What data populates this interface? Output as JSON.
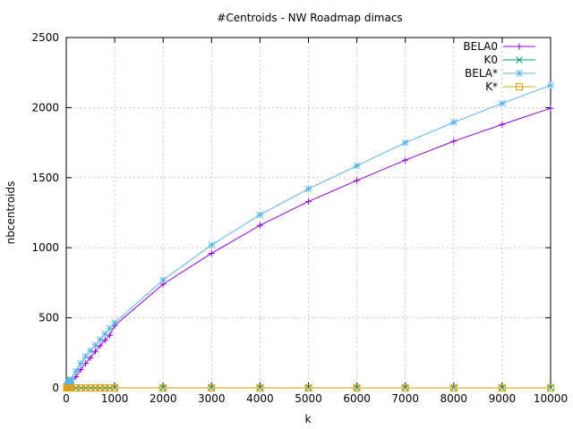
{
  "chart_data": {
    "type": "line",
    "title": "#Centroids - NW Roadmap dimacs",
    "xlabel": "k",
    "ylabel": "nbcentroids",
    "xlim": [
      0,
      10000
    ],
    "ylim": [
      0,
      2500
    ],
    "xticks": [
      0,
      1000,
      2000,
      3000,
      4000,
      5000,
      6000,
      7000,
      8000,
      9000,
      10000
    ],
    "yticks": [
      0,
      500,
      1000,
      1500,
      2000,
      2500
    ],
    "grid": true,
    "legend_position": "top-right",
    "series": [
      {
        "name": "BELA0",
        "color": "#9400d3",
        "marker": "plus",
        "x": [
          10,
          20,
          30,
          40,
          50,
          60,
          70,
          80,
          90,
          100,
          200,
          300,
          400,
          500,
          600,
          700,
          800,
          900,
          1000,
          2000,
          3000,
          4000,
          5000,
          6000,
          7000,
          8000,
          9000,
          10000
        ],
        "y": [
          6,
          10,
          13,
          17,
          20,
          23,
          26,
          28,
          31,
          34,
          80,
          130,
          175,
          215,
          260,
          300,
          340,
          375,
          445,
          740,
          960,
          1160,
          1330,
          1480,
          1625,
          1760,
          1880,
          1995
        ]
      },
      {
        "name": "K0",
        "color": "#009e73",
        "marker": "cross",
        "x": [
          10,
          20,
          30,
          40,
          50,
          60,
          70,
          80,
          90,
          100,
          200,
          300,
          400,
          500,
          600,
          700,
          800,
          900,
          1000,
          2000,
          3000,
          4000,
          5000,
          6000,
          7000,
          8000,
          9000,
          10000
        ],
        "y": [
          0,
          0,
          0,
          0,
          0,
          0,
          0,
          0,
          0,
          0,
          0,
          0,
          0,
          0,
          0,
          0,
          0,
          0,
          0,
          0,
          0,
          0,
          0,
          0,
          0,
          0,
          0,
          0
        ]
      },
      {
        "name": "BELA*",
        "color": "#56b4e9",
        "marker": "star",
        "x": [
          10,
          20,
          30,
          40,
          50,
          60,
          70,
          80,
          90,
          100,
          200,
          300,
          400,
          500,
          600,
          700,
          800,
          900,
          1000,
          2000,
          3000,
          4000,
          5000,
          6000,
          7000,
          8000,
          9000,
          10000
        ],
        "y": [
          8,
          14,
          20,
          26,
          32,
          38,
          44,
          50,
          55,
          60,
          120,
          175,
          225,
          265,
          305,
          345,
          385,
          425,
          465,
          770,
          1020,
          1235,
          1420,
          1585,
          1750,
          1895,
          2030,
          2160
        ]
      },
      {
        "name": "K*",
        "color": "#e69f00",
        "marker": "square",
        "x": [
          10,
          20,
          30,
          40,
          50,
          60,
          70,
          80,
          90,
          100,
          200,
          300,
          400,
          500,
          600,
          700,
          800,
          900,
          1000,
          2000,
          3000,
          4000,
          5000,
          6000,
          7000,
          8000,
          9000,
          10000
        ],
        "y": [
          0,
          0,
          0,
          0,
          0,
          0,
          0,
          0,
          0,
          0,
          0,
          0,
          0,
          0,
          0,
          0,
          0,
          0,
          0,
          0,
          0,
          0,
          0,
          0,
          0,
          0,
          0,
          0
        ]
      }
    ]
  }
}
